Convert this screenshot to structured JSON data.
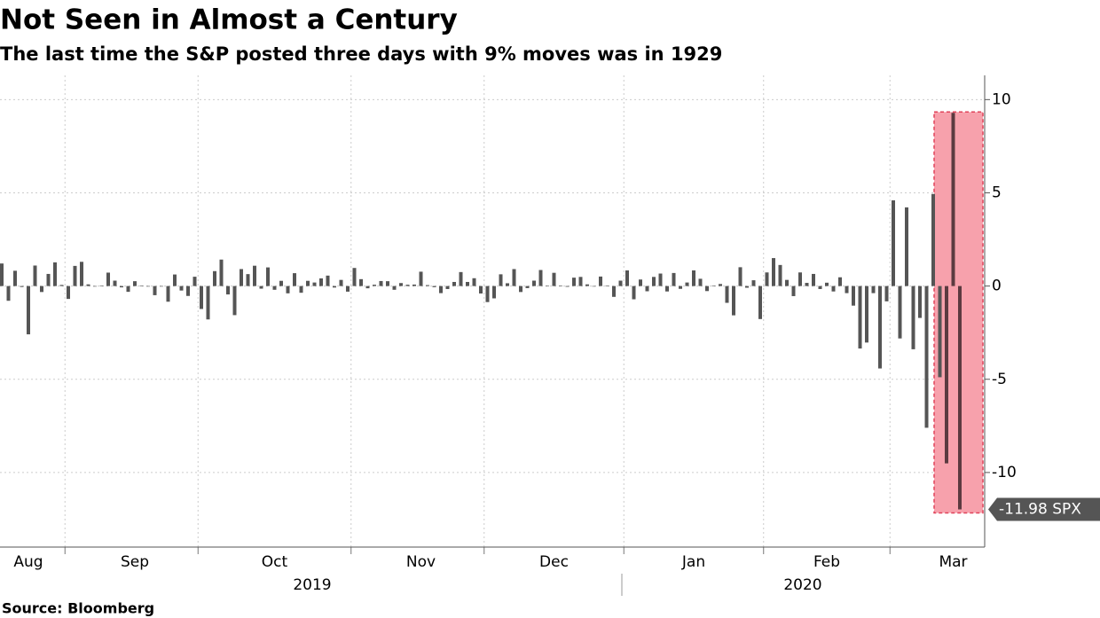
{
  "chart_data": {
    "type": "bar",
    "title": "Not Seen in Almost a Century",
    "subtitle": "The last time the S&P posted three days with 9% moves was in 1929",
    "source": "Source: Bloomberg",
    "years": [
      "2019",
      "2020"
    ],
    "color": "#555555",
    "highlight_color": "#5c3a40",
    "ylim": [
      -14,
      11.3
    ],
    "yticks": [
      10,
      5,
      0,
      -5,
      -10
    ],
    "grid": true,
    "categories": [
      null,
      null,
      null,
      null,
      "Aug",
      null,
      null,
      null,
      null,
      null,
      null,
      null,
      null,
      null,
      null,
      null,
      null,
      null,
      null,
      null,
      "Sep",
      null,
      null,
      null,
      null,
      null,
      null,
      null,
      null,
      null,
      null,
      null,
      null,
      null,
      null,
      null,
      null,
      null,
      null,
      null,
      null,
      "Oct",
      null,
      null,
      null,
      null,
      null,
      null,
      null,
      null,
      null,
      null,
      null,
      null,
      null,
      null,
      null,
      null,
      null,
      null,
      null,
      null,
      null,
      "Nov",
      null,
      null,
      null,
      null,
      null,
      null,
      null,
      null,
      null,
      null,
      null,
      null,
      null,
      null,
      null,
      null,
      null,
      null,
      null,
      "Dec",
      null,
      null,
      null,
      null,
      null,
      null,
      null,
      null,
      null,
      null,
      null,
      null,
      null,
      null,
      null,
      null,
      null,
      null,
      null,
      null,
      "Jan",
      null,
      null,
      null,
      null,
      null,
      null,
      null,
      null,
      null,
      null,
      null,
      null,
      null,
      null,
      null,
      null,
      null,
      null,
      null,
      "Feb",
      null,
      null,
      null,
      null,
      null,
      null,
      null,
      null,
      null,
      null,
      null,
      null,
      null,
      null,
      null,
      null,
      null,
      null,
      "Mar",
      null
    ],
    "values": [
      1.21,
      -0.79,
      0.82,
      -0.05,
      -2.59,
      1.1,
      -0.32,
      0.65,
      1.27,
      0.06,
      -0.69,
      1.08,
      1.3,
      0.09,
      -0.01,
      0.03,
      0.72,
      0.29,
      -0.07,
      -0.31,
      0.26,
      0.03,
      0.0,
      -0.49,
      -0.01,
      -0.84,
      0.62,
      -0.24,
      -0.53,
      0.5,
      -1.23,
      -1.79,
      0.8,
      1.42,
      -0.45,
      -1.56,
      0.91,
      0.64,
      1.09,
      -0.14,
      1.0,
      -0.2,
      0.28,
      -0.39,
      0.69,
      -0.36,
      0.28,
      0.19,
      0.41,
      0.56,
      -0.08,
      0.33,
      -0.3,
      0.97,
      0.37,
      -0.12,
      0.07,
      0.27,
      0.26,
      -0.2,
      0.16,
      0.07,
      0.08,
      0.77,
      0.05,
      -0.06,
      -0.38,
      -0.16,
      0.22,
      0.75,
      0.22,
      0.42,
      -0.4,
      -0.86,
      -0.66,
      0.63,
      0.15,
      0.91,
      -0.32,
      -0.11,
      0.29,
      0.86,
      0.01,
      0.71,
      0.03,
      -0.04,
      0.45,
      0.49,
      0.09,
      -0.02,
      0.51,
      0.03,
      -0.58,
      0.29,
      0.84,
      -0.71,
      0.35,
      -0.28,
      0.49,
      0.67,
      -0.29,
      0.7,
      -0.15,
      0.19,
      0.84,
      0.39,
      -0.27,
      0.03,
      0.11,
      -0.9,
      -1.57,
      1.01,
      -0.09,
      0.31,
      -1.77,
      0.73,
      1.5,
      1.13,
      0.33,
      -0.54,
      0.73,
      0.17,
      0.65,
      -0.16,
      0.18,
      -0.29,
      0.47,
      -0.38,
      -1.05,
      -3.35,
      -3.03,
      -0.38,
      -4.42,
      -0.82,
      4.6,
      -2.81,
      4.22,
      -3.39,
      -1.71,
      -7.6,
      4.94,
      -4.89,
      -9.51,
      9.29,
      -11.98
    ],
    "value_labels": [
      null,
      null,
      null,
      null,
      null,
      null,
      null,
      null,
      null,
      null,
      null,
      null,
      null,
      null,
      null,
      null,
      null,
      null,
      null,
      null,
      null,
      null,
      null,
      null,
      null,
      null,
      null,
      null,
      null,
      null,
      null,
      null,
      null,
      null,
      null,
      null,
      null,
      null,
      null,
      null,
      null,
      null,
      null,
      null,
      null,
      null,
      null,
      null,
      null,
      null,
      null,
      null,
      null,
      null,
      null,
      null,
      null,
      null,
      null,
      null,
      null,
      null,
      null,
      null,
      null,
      null,
      null,
      null,
      null,
      null,
      null,
      null,
      null,
      null,
      null,
      null,
      null,
      null,
      null,
      null,
      null,
      null,
      null,
      null,
      null,
      null,
      null,
      null,
      null,
      null,
      null,
      null,
      null,
      null,
      null,
      null,
      null,
      null,
      null,
      null,
      null,
      null,
      null,
      null,
      null,
      null,
      null,
      null,
      null,
      null,
      null,
      null,
      null,
      null,
      null,
      null,
      null,
      null,
      null,
      null,
      null,
      null,
      null,
      null,
      null,
      null,
      null,
      null,
      null,
      null,
      null,
      null,
      null,
      null,
      null,
      null,
      null,
      null,
      null,
      null,
      null,
      null,
      null,
      null,
      "-11.98 SPX"
    ]
  }
}
